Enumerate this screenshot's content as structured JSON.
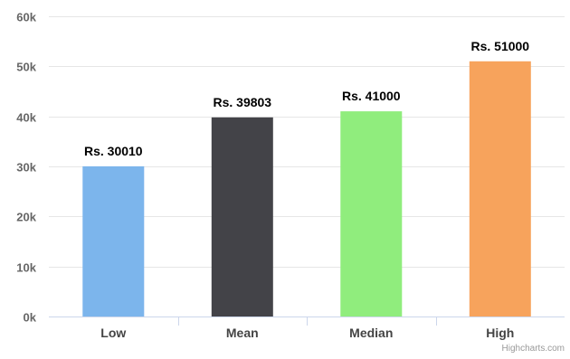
{
  "chart_data": {
    "type": "bar",
    "categories": [
      "Low",
      "Mean",
      "Median",
      "High"
    ],
    "values": [
      30010,
      39803,
      41000,
      51000
    ],
    "data_labels": [
      "Rs. 30010",
      "Rs. 39803",
      "Rs. 41000",
      "Rs. 51000"
    ],
    "colors": [
      "#7cb5ec",
      "#434348",
      "#90ed7d",
      "#f7a35c"
    ],
    "y_ticks": [
      0,
      10000,
      20000,
      30000,
      40000,
      50000,
      60000
    ],
    "y_tick_labels": [
      "0k",
      "10k",
      "20k",
      "30k",
      "40k",
      "50k",
      "60k"
    ],
    "ylim": [
      0,
      60000
    ],
    "grid": true,
    "legend": false,
    "title": "",
    "xlabel": "",
    "ylabel": ""
  },
  "credits": "Highcharts.com"
}
